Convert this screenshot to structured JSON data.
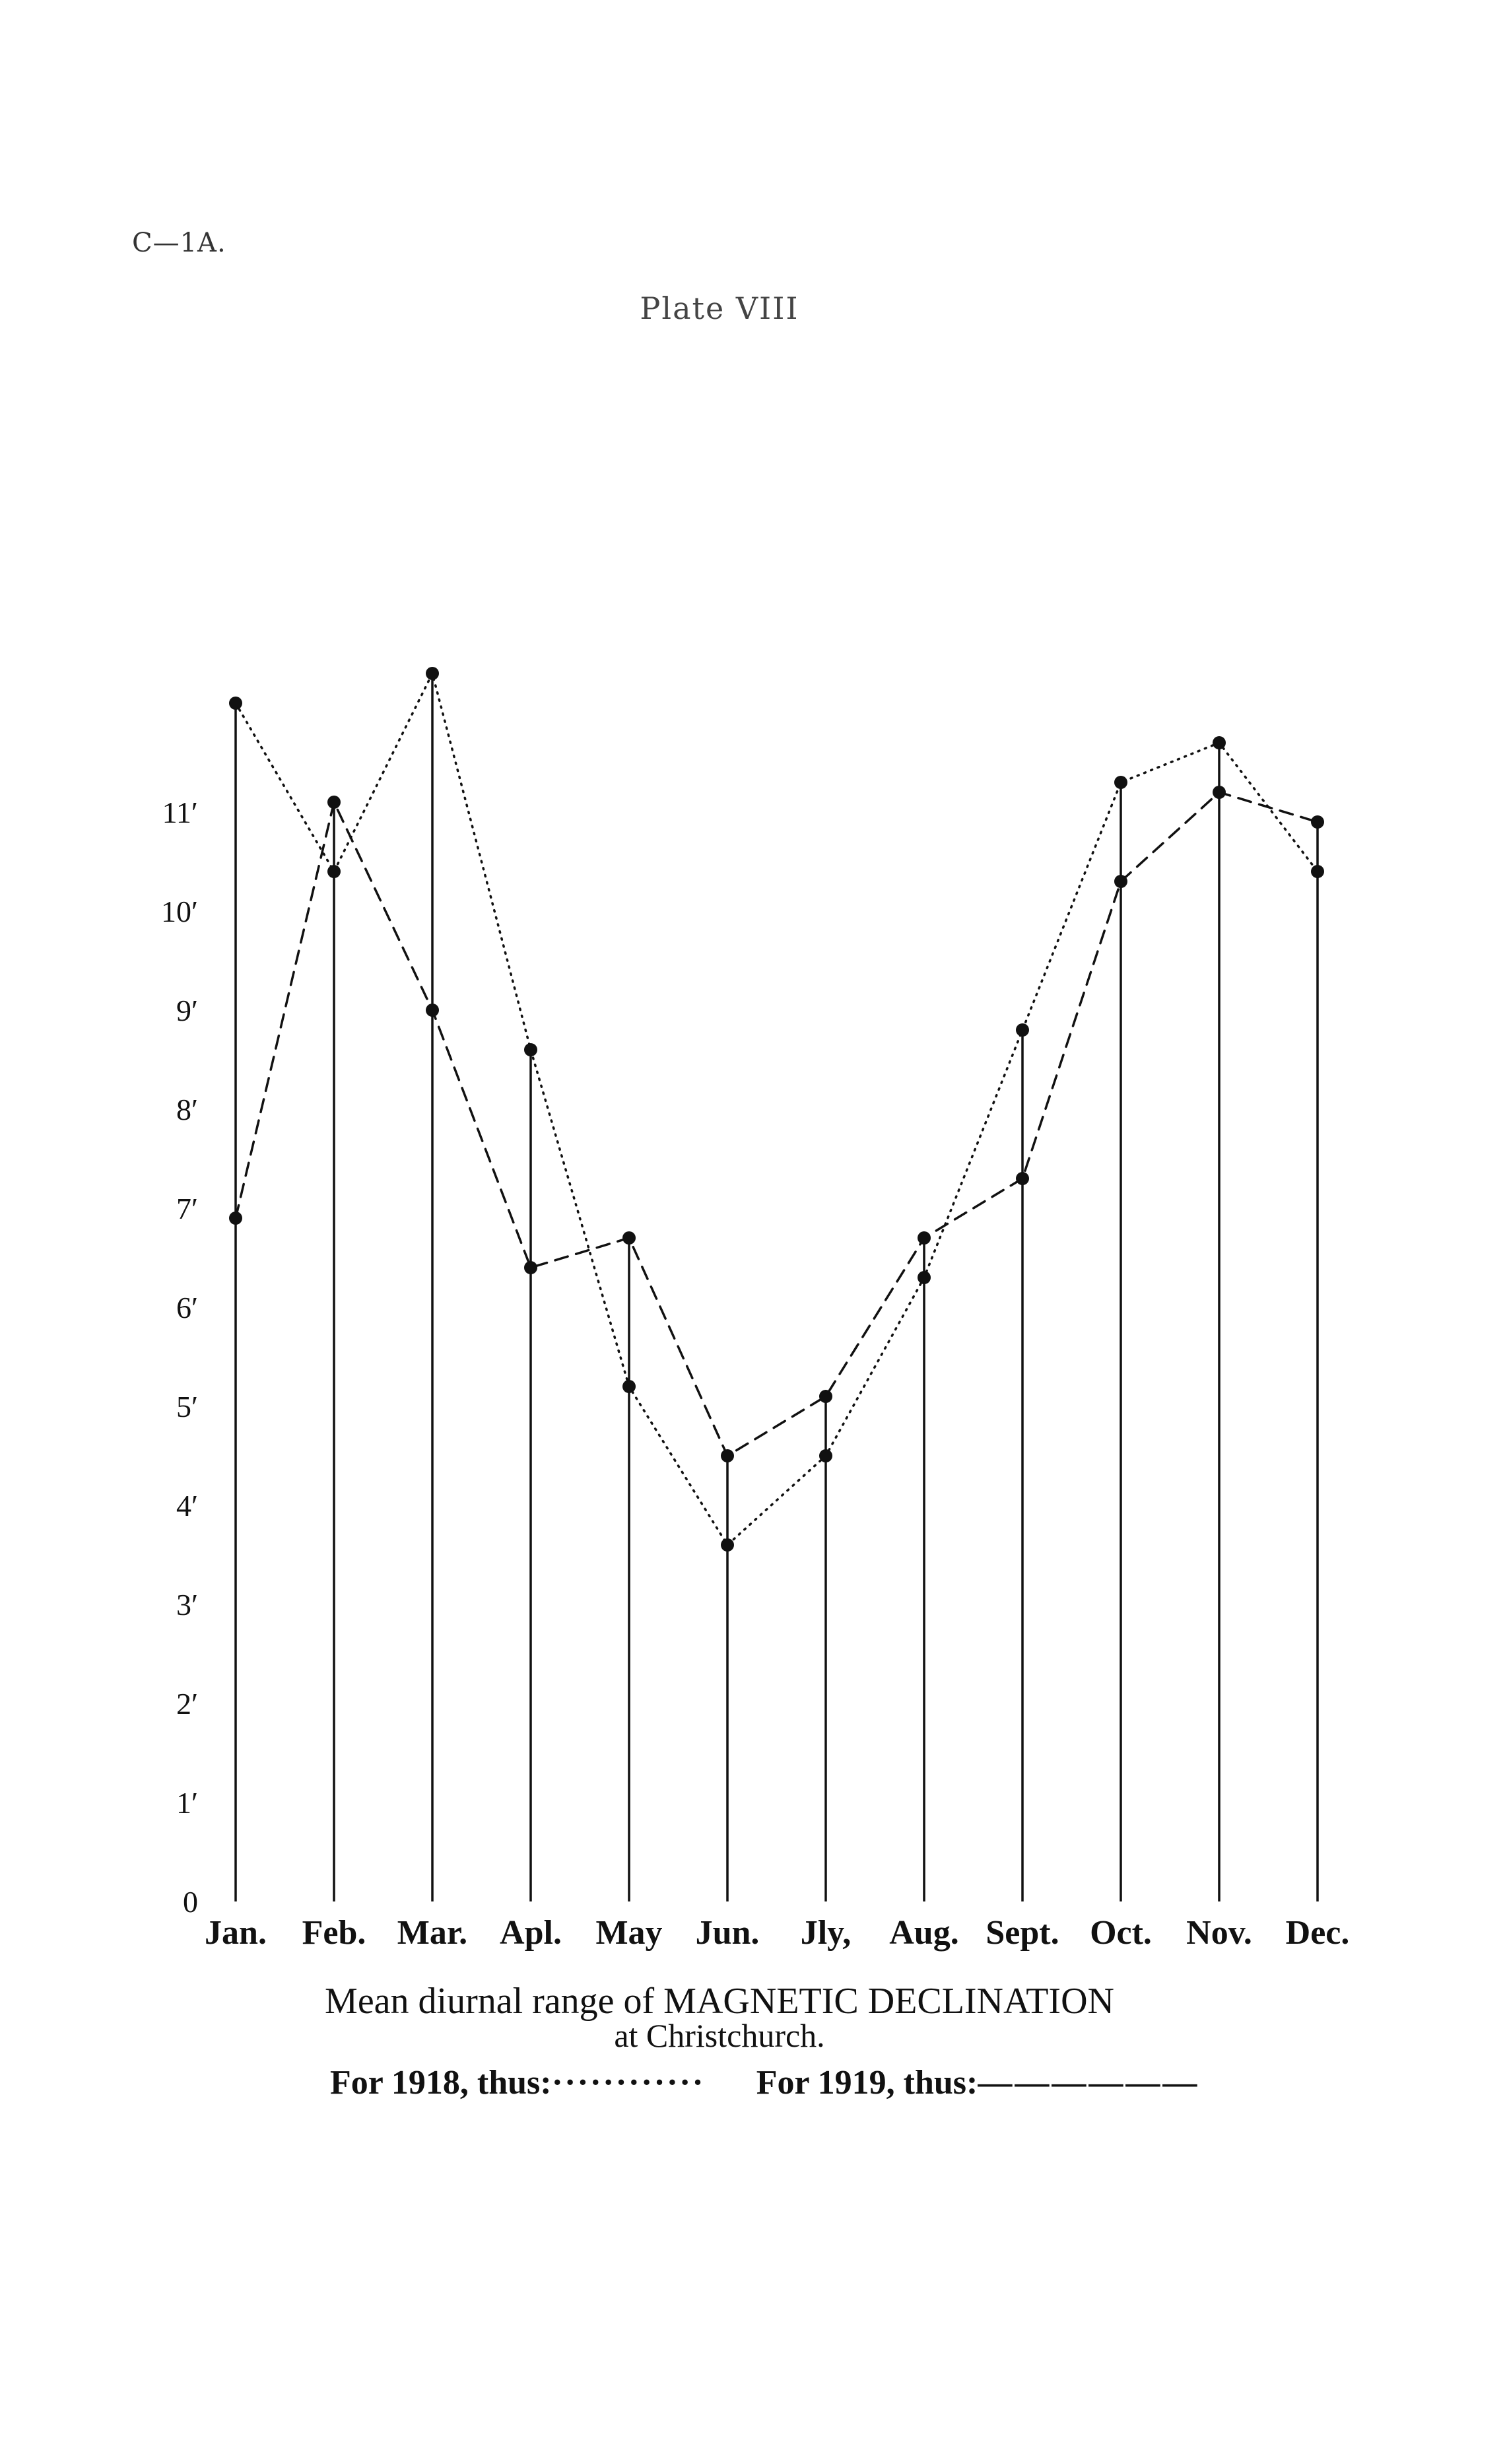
{
  "header": {
    "ref": "C—1A.",
    "plate": "Plate VIII"
  },
  "caption": {
    "line1": "Mean diurnal range of MAGNETIC DECLINATION",
    "line2": "at Christchurch."
  },
  "legend": {
    "for1918": "For 1918, thus:",
    "swatch1918": "············",
    "for1919": "For 1919, thus:",
    "swatch1919": "——————"
  },
  "chart_data": {
    "type": "line",
    "categories": [
      "Jan.",
      "Feb.",
      "Mar.",
      "Apl.",
      "May",
      "Jun.",
      "Jly,",
      "Aug.",
      "Sept.",
      "Oct.",
      "Nov.",
      "Dec."
    ],
    "ytick_labels": [
      "0",
      "1′",
      "2′",
      "3′",
      "4′",
      "5′",
      "6′",
      "7′",
      "8′",
      "9′",
      "10′",
      "11′"
    ],
    "ylim": [
      0,
      12.4
    ],
    "title": "",
    "xlabel": "",
    "ylabel": "",
    "grid": false,
    "series": [
      {
        "name": "For 1918",
        "style": "dotted",
        "values": [
          12.1,
          10.4,
          12.4,
          8.6,
          5.2,
          3.6,
          4.5,
          6.3,
          8.8,
          11.3,
          11.7,
          10.4
        ]
      },
      {
        "name": "For 1919",
        "style": "dashed",
        "values": [
          6.9,
          11.1,
          9.0,
          6.4,
          6.7,
          4.5,
          5.1,
          6.7,
          7.3,
          10.3,
          11.2,
          10.9
        ]
      }
    ],
    "drop_lines_to_max": true,
    "colors": {
      "ink": "#111111",
      "background": "#ffffff"
    }
  }
}
